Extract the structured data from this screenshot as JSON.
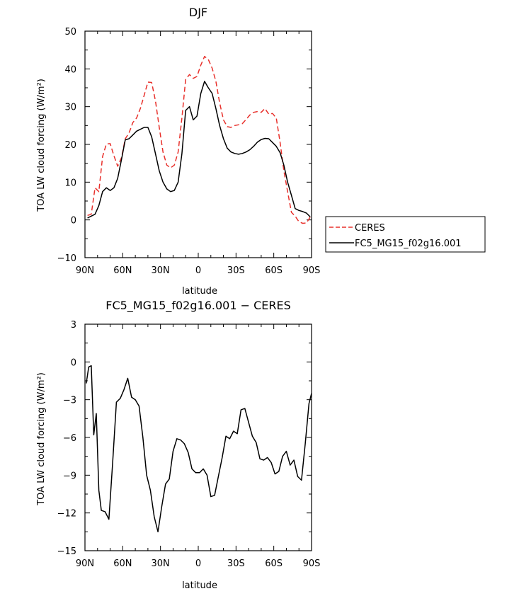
{
  "chart_data": [
    {
      "type": "line",
      "title": "DJF",
      "xlabel": "latitude",
      "ylabel": "TOA LW cloud forcing (W/m²)",
      "xlim": [
        90,
        -90
      ],
      "ylim": [
        -10,
        50
      ],
      "yticks": [
        -10,
        0,
        10,
        20,
        30,
        40,
        50
      ],
      "xticks": [
        90,
        60,
        30,
        0,
        -30,
        -60,
        -90
      ],
      "xtick_labels": [
        "90N",
        "60N",
        "30N",
        "0",
        "30S",
        "60S",
        "90S"
      ],
      "legend_position": "right",
      "x": [
        88,
        85,
        82,
        79,
        76,
        73,
        70,
        67,
        64,
        61,
        58,
        55,
        52,
        49,
        46,
        43,
        40,
        37,
        34,
        31,
        28,
        25,
        22,
        19,
        16,
        13,
        10,
        7,
        4,
        1,
        -2,
        -5,
        -8,
        -11,
        -14,
        -17,
        -20,
        -23,
        -26,
        -29,
        -32,
        -35,
        -38,
        -41,
        -44,
        -47,
        -50,
        -53,
        -56,
        -59,
        -62,
        -65,
        -68,
        -71,
        -74,
        -77,
        -80,
        -83,
        -86,
        -89
      ],
      "series": [
        {
          "name": "CERES",
          "color": "#e8302b",
          "dash": "dashed",
          "values": [
            1.2,
            1.5,
            8.5,
            7.5,
            16.8,
            20.1,
            20.2,
            17.0,
            14.2,
            16.5,
            21.5,
            23.0,
            25.8,
            27.0,
            29.5,
            33.0,
            36.5,
            36.4,
            31.5,
            24.5,
            18.0,
            14.5,
            13.8,
            14.5,
            18.0,
            27.0,
            37.2,
            38.5,
            37.5,
            38.0,
            41.0,
            43.3,
            42.5,
            40.2,
            36.7,
            31.0,
            26.5,
            24.7,
            24.5,
            25.0,
            25.2,
            25.5,
            26.6,
            27.8,
            28.5,
            28.7,
            28.5,
            29.5,
            28.0,
            28.2,
            27.0,
            20.5,
            13.0,
            7.5,
            2.0,
            1.0,
            -0.5,
            -0.9,
            -0.8,
            0.8
          ]
        },
        {
          "name": "FC5_MG15_f02g16.001",
          "color": "#000000",
          "dash": "solid",
          "values": [
            0.5,
            1.0,
            1.5,
            3.8,
            7.5,
            8.5,
            7.8,
            8.5,
            11.0,
            16.0,
            21.2,
            21.5,
            22.5,
            23.5,
            24.0,
            24.5,
            24.5,
            22.0,
            17.5,
            13.0,
            10.0,
            8.2,
            7.5,
            7.8,
            10.0,
            17.5,
            29.0,
            30.0,
            26.5,
            27.5,
            33.5,
            36.7,
            35.0,
            33.5,
            29.5,
            25.0,
            21.5,
            19.0,
            18.0,
            17.6,
            17.4,
            17.6,
            18.0,
            18.6,
            19.5,
            20.6,
            21.3,
            21.6,
            21.5,
            20.5,
            19.5,
            17.8,
            14.5,
            10.0,
            6.5,
            3.0,
            2.5,
            2.2,
            1.8,
            0.8
          ]
        }
      ]
    },
    {
      "type": "line",
      "title": "FC5_MG15_f02g16.001 − CERES",
      "xlabel": "latitude",
      "ylabel": "TOA LW cloud forcing (W/m²)",
      "xlim": [
        90,
        -90
      ],
      "ylim": [
        -15,
        3
      ],
      "yticks": [
        -15,
        -12,
        -9,
        -6,
        -3,
        0,
        3
      ],
      "xticks": [
        90,
        60,
        30,
        0,
        -30,
        -60,
        -90
      ],
      "xtick_labels": [
        "90N",
        "60N",
        "30N",
        "0",
        "30S",
        "60S",
        "90S"
      ],
      "x": [
        89,
        87,
        85,
        83,
        81,
        79,
        77,
        74,
        71,
        68,
        65,
        62,
        59,
        56,
        53,
        50,
        47,
        44,
        41,
        38,
        35,
        32,
        29,
        26,
        23,
        20,
        17,
        14,
        11,
        8,
        5,
        2,
        -1,
        -4,
        -7,
        -10,
        -13,
        -16,
        -19,
        -22,
        -25,
        -28,
        -31,
        -34,
        -37,
        -40,
        -43,
        -46,
        -49,
        -52,
        -55,
        -58,
        -61,
        -64,
        -67,
        -70,
        -73,
        -76,
        -79,
        -82,
        -85,
        -88,
        -90
      ],
      "series": [
        {
          "name": "FC5_MG15_f02g16.001 − CERES",
          "color": "#000000",
          "dash": "solid",
          "values": [
            -1.7,
            -0.4,
            -0.3,
            -5.8,
            -4.1,
            -10.2,
            -11.8,
            -11.9,
            -12.5,
            -8.0,
            -3.2,
            -2.9,
            -2.2,
            -1.3,
            -2.8,
            -3.0,
            -3.5,
            -6.0,
            -9.0,
            -10.2,
            -12.3,
            -13.5,
            -11.5,
            -9.7,
            -9.3,
            -7.1,
            -6.1,
            -6.2,
            -6.5,
            -7.2,
            -8.5,
            -8.8,
            -8.8,
            -8.5,
            -9.0,
            -10.7,
            -10.6,
            -9.1,
            -7.6,
            -5.9,
            -6.1,
            -5.5,
            -5.7,
            -3.8,
            -3.7,
            -4.8,
            -5.9,
            -6.4,
            -7.7,
            -7.8,
            -7.6,
            -8.0,
            -8.9,
            -8.7,
            -7.5,
            -7.1,
            -8.2,
            -7.8,
            -9.1,
            -9.4,
            -6.5,
            -3.3,
            -2.5
          ]
        }
      ]
    }
  ]
}
